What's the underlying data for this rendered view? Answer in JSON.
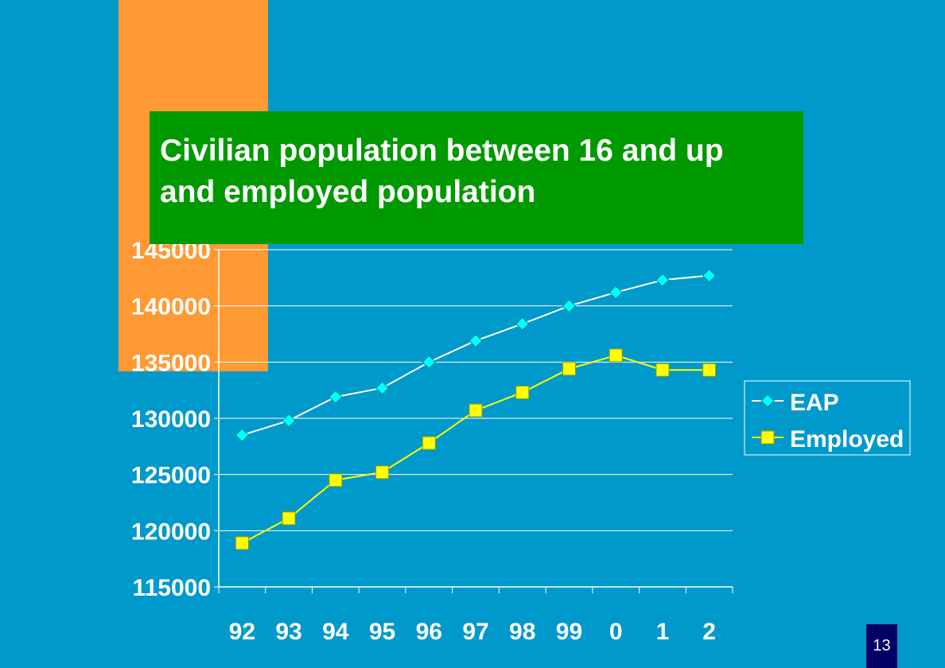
{
  "slide": {
    "title": "Civilian population between 16 and up and employed population",
    "page_number": "13",
    "colors": {
      "background": "#0099CC",
      "accent_bar": "#FF9933",
      "title_box": "#009900",
      "eap_line": "#FFFFFF",
      "eap_marker": "#00FFFF",
      "employed": "#FFFF00"
    }
  },
  "chart_data": {
    "type": "line",
    "title": "Civilian population between 16 and up and employed population",
    "categories": [
      "92",
      "93",
      "94",
      "95",
      "96",
      "97",
      "98",
      "99",
      "0",
      "1",
      "2"
    ],
    "series": [
      {
        "name": "EAP",
        "marker": "diamond",
        "values": [
          128500,
          129800,
          131900,
          132700,
          135000,
          136900,
          138400,
          140000,
          141200,
          142300,
          142700
        ]
      },
      {
        "name": "Employed",
        "marker": "square",
        "values": [
          118900,
          121100,
          124500,
          125200,
          127800,
          130700,
          132300,
          134400,
          135600,
          134300,
          134300
        ]
      }
    ],
    "yticks": [
      "145000",
      "140000",
      "135000",
      "130000",
      "125000",
      "120000",
      "115000"
    ],
    "ylim": [
      115000,
      145000
    ],
    "grid": true,
    "legend_position": "right"
  }
}
